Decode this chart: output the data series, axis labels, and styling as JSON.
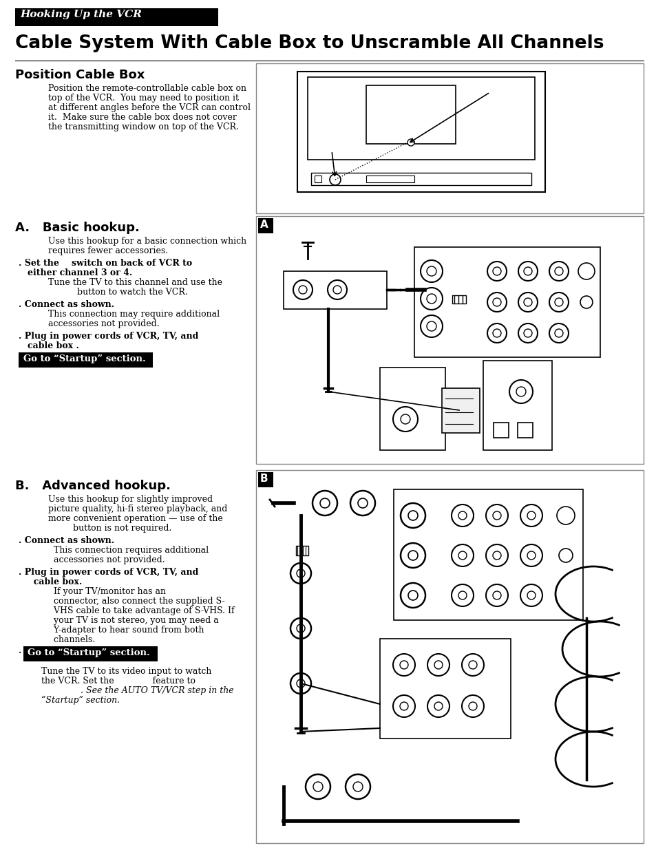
{
  "page_bg": "#ffffff",
  "header_bg": "#000000",
  "header_text": "Hooking Up the VCR",
  "header_text_color": "#ffffff",
  "title": "Cable System With Cable Box to Unscramble All Channels",
  "section1_heading": "Position Cable Box",
  "section1_body_lines": [
    "Position the remote-controllable cable box on",
    "top of the VCR.  You may need to position it",
    "at different angles before the VCR can control",
    "it.  Make sure the cable box does not cover",
    "the transmitting window on top of the VCR."
  ],
  "section_a_heading": "A.   Basic hookup.",
  "section_a_intro_lines": [
    "Use this hookup for a basic connection which",
    "requires fewer accessories."
  ],
  "section_a_bullet1a": ". Set the          switch on back of VCR to",
  "section_a_bullet1b": "  either channel 3 or 4.",
  "section_a_bullet1c": "  Tune the TV to this channel and use the",
  "section_a_bullet1d": "               button to watch the VCR.",
  "section_a_bullet2a": ". Connect as shown.",
  "section_a_bullet2b": "  This connection may require additional",
  "section_a_bullet2c": "  accessories not provided.",
  "section_a_bullet3a": ". Plug in power cords of VCR, TV, and",
  "section_a_bullet3b": "  cable box .",
  "section_a_goto_text": "Go to “Startup” section.",
  "section_b_heading": "B.   Advanced hookup.",
  "section_b_intro_lines": [
    "Use this hookup for slightly improved",
    "picture quality, hi-fi stereo playback, and",
    "more convenient operation — use of the",
    "         button is not required."
  ],
  "section_b_bullet1a": ". Connect as shown.",
  "section_b_bullet1b": "  This connection requires additional",
  "section_b_bullet1c": "  accessories not provided.",
  "section_b_bullet2a": ". Plug in power cords of VCR, TV, and",
  "section_b_bullet2b": "  cable box.",
  "section_b_bullet2c": "  If your TV/monitor has an",
  "section_b_bullet2d": "  connector, also connect the supplied S-",
  "section_b_bullet2e": "  VHS cable to take advantage of S-VHS. If",
  "section_b_bullet2f": "  your TV is not stereo, you may need a",
  "section_b_bullet2g": "  Y-adapter to hear sound from both",
  "section_b_bullet2h": "  channels.",
  "section_b_goto_text": "Go to “Startup” section.",
  "section_b_foot1": "Tune the TV to its video input to watch",
  "section_b_foot2": "the VCR. Set the              feature to",
  "section_b_foot3": "             . See the AUTO TV/VCR step in the",
  "section_b_foot4": "“Startup” section."
}
